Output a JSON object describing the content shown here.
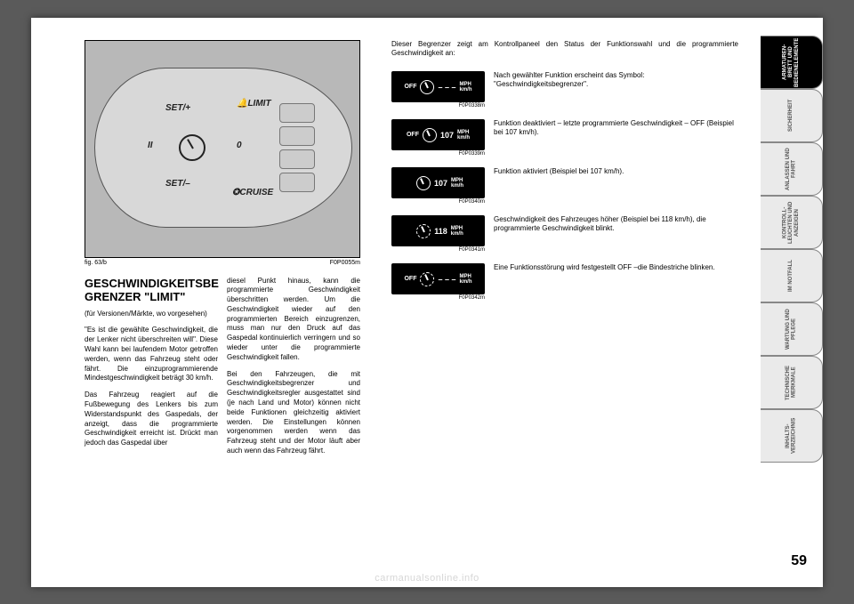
{
  "page_number": "59",
  "watermark": "carmanualsonline.info",
  "tabs": [
    {
      "label": "ARMATUREN-\nBRETT UND\nBEDIENELEMENTE",
      "active": true
    },
    {
      "label": "SICHERHEIT",
      "active": false
    },
    {
      "label": "ANLASSEN\nUND FAHRT",
      "active": false
    },
    {
      "label": "KONTROLL-\nLEUCHTEN UND\nANZEIGEN",
      "active": false
    },
    {
      "label": "IM NOTFALL",
      "active": false
    },
    {
      "label": "WARTUNG UND\nPFLEGE",
      "active": false
    },
    {
      "label": "TECHNISCHE\nMERKMALE",
      "active": false
    },
    {
      "label": "INHALTS-\nVERZEICHNIS",
      "active": false
    }
  ],
  "figure": {
    "caption_left": "fig. 63/b",
    "caption_right": "F0P0055m",
    "labels": {
      "set_plus": "SET/+",
      "set_minus": "SET/–",
      "limit": "LIMIT",
      "cruise": "CRUISE",
      "pause": "II",
      "zero": "0"
    }
  },
  "heading": "GESCHWINDIGKEITSBE GRENZER \"LIMIT\"",
  "sub": "(für Versionen/Märkte, wo vorgesehen)",
  "col1_p1": "\"Es ist die gewählte Geschwindigkeit, die der Lenker nicht überschreiten will\". Diese Wahl kann bei laufendem Motor getroffen werden, wenn das Fahrzeug steht oder fährt. Die einzuprogrammierende Mindestgeschwindigkeit beträgt 30 km/h.",
  "col1_p2": "Das Fahrzeug reagiert auf die Fußbewegung des Lenkers bis zum Widerstandspunkt des Gaspedals, der anzeigt, dass die programmierte Geschwindigkeit erreicht ist. Drückt man jedoch das Gaspedal über",
  "col2_p1": "diesel Punkt hinaus, kann die programmierte Geschwindigkeit überschritten werden. Um die Geschwindigkeit wieder auf den programmierten Bereich einzugrenzen, muss man nur den Druck auf das Gaspedal kontinuierlich verringern und so wieder unter die programmierte Geschwindigkeit fallen.",
  "col2_p2": "Bei den Fahrzeugen, die mit Geschwindigkeitsbegrenzer und Geschwindigkeitsregler ausgestattet sind (je nach Land und Motor) können nicht beide Funktionen gleichzeitig aktiviert werden. Die Einstellungen können vorgenommen werden wenn das Fahrzeug steht und der Motor läuft aber auch wenn das Fahrzeug fährt.",
  "right_intro": "Dieser Begrenzer zeigt am Kontrollpaneel den Status der Funktionswahl und die programmierte Geschwindigkeit an:",
  "displays": [
    {
      "off": "OFF",
      "value": "– – –",
      "units_top": "MPH",
      "units_bot": "km/h",
      "code": "F0P0338m",
      "text": "Nach gewählter Funktion erscheint das Symbol: \"Geschwindigkeitsbegrenzer\".",
      "icon_class": "icon"
    },
    {
      "off": "OFF",
      "value": "107",
      "units_top": "MPH",
      "units_bot": "km/h",
      "code": "F0P0339m",
      "text": "Funktion deaktiviert – letzte programmierte Geschwindigkeit – OFF (Beispiel bei 107 km/h).",
      "icon_class": "icon"
    },
    {
      "off": "",
      "value": "107",
      "units_top": "MPH",
      "units_bot": "km/h",
      "code": "F0P0340m",
      "text": "Funktion aktiviert (Beispiel bei 107 km/h).",
      "icon_class": "icon"
    },
    {
      "off": "",
      "value": "118",
      "units_top": "MPH",
      "units_bot": "km/h",
      "code": "F0P0341m",
      "text": "Geschwindigkeit des Fahrzeuges höher (Beispiel bei 118 km/h), die programmierte Geschwindigkeit blinkt.",
      "icon_class": "icon blink"
    },
    {
      "off": "OFF",
      "value": "– – –",
      "units_top": "MPH",
      "units_bot": "km/h",
      "code": "F0P0342m",
      "text": "Eine Funktionsstörung wird festgestellt OFF –die Bindestriche blinken.",
      "icon_class": "icon blink"
    }
  ]
}
